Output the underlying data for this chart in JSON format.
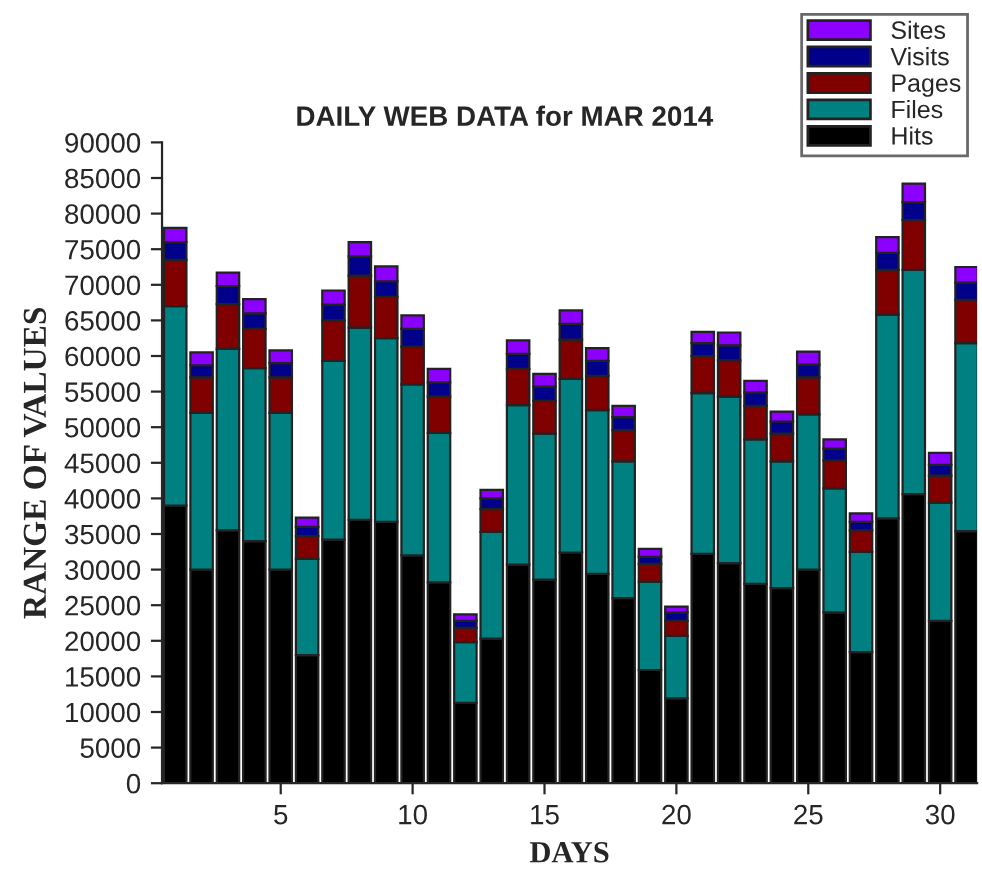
{
  "chart_data": {
    "type": "bar",
    "title": "DAILY WEB DATA for MAR 2014",
    "xlabel": "DAYS",
    "ylabel": "RANGE OF VALUES",
    "stacked": true,
    "x": [
      1,
      2,
      3,
      4,
      5,
      6,
      7,
      8,
      9,
      10,
      11,
      12,
      13,
      14,
      15,
      16,
      17,
      18,
      19,
      20,
      21,
      22,
      23,
      24,
      25,
      26,
      27,
      28,
      29,
      30,
      31
    ],
    "series": [
      {
        "name": "Hits",
        "color": "#000000",
        "values": [
          39000,
          30000,
          35500,
          34000,
          30000,
          18000,
          34200,
          37000,
          36700,
          32000,
          28200,
          11300,
          20300,
          30700,
          28600,
          32400,
          29400,
          26000,
          15900,
          11900,
          32200,
          30900,
          28000,
          27400,
          30000,
          24000,
          18400,
          37200,
          40600,
          22800,
          35400
        ]
      },
      {
        "name": "Files",
        "color": "#008080",
        "values": [
          28000,
          22000,
          25500,
          24300,
          22000,
          13500,
          25100,
          27000,
          25800,
          24000,
          21000,
          8500,
          15000,
          22400,
          20500,
          24400,
          23000,
          19200,
          12400,
          8800,
          22600,
          23400,
          20300,
          17800,
          21800,
          17400,
          14100,
          28600,
          31500,
          16600,
          26400
        ]
      },
      {
        "name": "Pages",
        "color": "#800000",
        "values": [
          6500,
          5000,
          6300,
          5500,
          5000,
          3200,
          5700,
          7300,
          5800,
          5300,
          5100,
          2000,
          3200,
          5100,
          4600,
          5500,
          4800,
          4400,
          2500,
          2100,
          5200,
          5100,
          4700,
          3900,
          5200,
          3900,
          3000,
          6300,
          7000,
          3800,
          6100
        ]
      },
      {
        "name": "Visits",
        "color": "#00008b",
        "values": [
          2500,
          1700,
          2500,
          2200,
          2000,
          1300,
          2200,
          2700,
          2200,
          2500,
          2000,
          1000,
          1500,
          2100,
          2000,
          2200,
          2100,
          1800,
          1000,
          1200,
          1800,
          2100,
          1900,
          1700,
          1800,
          1700,
          1200,
          2400,
          2500,
          1500,
          2400
        ]
      },
      {
        "name": "Sites",
        "color": "#8b00ff",
        "values": [
          2000,
          1800,
          1900,
          2000,
          1800,
          1300,
          2000,
          2000,
          2100,
          1900,
          1900,
          900,
          1200,
          1900,
          1800,
          1900,
          1800,
          1600,
          1100,
          800,
          1600,
          1800,
          1600,
          1400,
          1800,
          1300,
          1200,
          2200,
          2600,
          1700,
          2200
        ]
      }
    ],
    "xlim": [
      0.5,
      31.4
    ],
    "xticks": [
      5,
      10,
      15,
      20,
      25,
      30
    ],
    "ylim": [
      0,
      90000
    ],
    "yticks": [
      0,
      5000,
      10000,
      15000,
      20000,
      25000,
      30000,
      35000,
      40000,
      45000,
      50000,
      55000,
      60000,
      65000,
      70000,
      75000,
      80000,
      85000,
      90000
    ],
    "grid": false,
    "legend": "top right"
  }
}
